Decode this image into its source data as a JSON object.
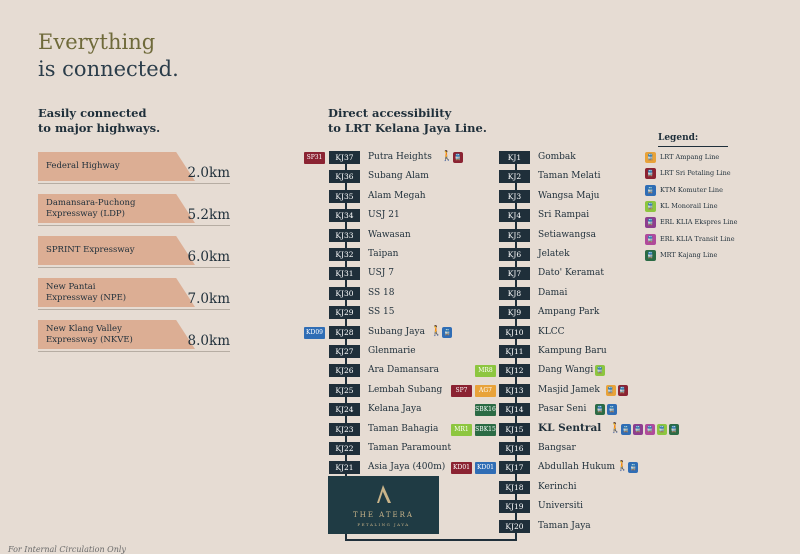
{
  "hero": {
    "line1": "Everything",
    "line2": "is connected."
  },
  "highways": {
    "heading": [
      "Easily connected",
      "to major highways."
    ],
    "items": [
      {
        "name": [
          "Federal Highway"
        ],
        "distance": "2.0km"
      },
      {
        "name": [
          "Damansara-Puchong",
          "Expressway (LDP)"
        ],
        "distance": "5.2km"
      },
      {
        "name": [
          "SPRINT Expressway"
        ],
        "distance": "6.0km"
      },
      {
        "name": [
          "New Pantai",
          "Expressway (NPE)"
        ],
        "distance": "7.0km"
      },
      {
        "name": [
          "New Klang Valley",
          "Expressway (NKVE)"
        ],
        "distance": "8.0km"
      }
    ]
  },
  "lrt": {
    "heading": [
      "Direct accessibility",
      "to LRT Kelana Jaya Line."
    ],
    "left": [
      {
        "code": "KJ37",
        "name": "Putra Heights",
        "badges": [
          {
            "text": "SP31",
            "line": "sri_petaling"
          }
        ],
        "icons": [
          "walk",
          "sri_petaling"
        ]
      },
      {
        "code": "KJ36",
        "name": "Subang Alam",
        "badges": [],
        "icons": []
      },
      {
        "code": "KJ35",
        "name": "Alam Megah",
        "badges": [],
        "icons": []
      },
      {
        "code": "KJ34",
        "name": "USJ 21",
        "badges": [],
        "icons": []
      },
      {
        "code": "KJ33",
        "name": "Wawasan",
        "badges": [],
        "icons": []
      },
      {
        "code": "KJ32",
        "name": "Taipan",
        "badges": [],
        "icons": []
      },
      {
        "code": "KJ31",
        "name": "USJ 7",
        "badges": [],
        "icons": []
      },
      {
        "code": "KJ30",
        "name": "SS 18",
        "badges": [],
        "icons": []
      },
      {
        "code": "KJ29",
        "name": "SS 15",
        "badges": [],
        "icons": []
      },
      {
        "code": "KJ28",
        "name": "Subang Jaya",
        "badges": [
          {
            "text": "KD09",
            "line": "ktm"
          }
        ],
        "icons": [
          "walk",
          "ktm"
        ]
      },
      {
        "code": "KJ27",
        "name": "Glenmarie",
        "badges": [],
        "icons": []
      },
      {
        "code": "KJ26",
        "name": "Ara Damansara",
        "badges": [],
        "icons": []
      },
      {
        "code": "KJ25",
        "name": "Lembah Subang",
        "badges": [],
        "icons": []
      },
      {
        "code": "KJ24",
        "name": "Kelana Jaya",
        "badges": [],
        "icons": []
      },
      {
        "code": "KJ23",
        "name": "Taman Bahagia",
        "badges": [],
        "icons": []
      },
      {
        "code": "KJ22",
        "name": "Taman Paramount",
        "badges": [],
        "icons": []
      },
      {
        "code": "KJ21",
        "name": "Asia Jaya (400m)",
        "badges": [],
        "icons": []
      }
    ],
    "right": [
      {
        "code": "KJ1",
        "name": "Gombak",
        "badges": [],
        "icons": []
      },
      {
        "code": "KJ2",
        "name": "Taman Melati",
        "badges": [],
        "icons": []
      },
      {
        "code": "KJ3",
        "name": "Wangsa Maju",
        "badges": [],
        "icons": []
      },
      {
        "code": "KJ4",
        "name": "Sri Rampai",
        "badges": [],
        "icons": []
      },
      {
        "code": "KJ5",
        "name": "Setiawangsa",
        "badges": [],
        "icons": []
      },
      {
        "code": "KJ6",
        "name": "Jelatek",
        "badges": [],
        "icons": []
      },
      {
        "code": "KJ7",
        "name": "Dato' Keramat",
        "badges": [],
        "icons": []
      },
      {
        "code": "KJ8",
        "name": "Damai",
        "badges": [],
        "icons": []
      },
      {
        "code": "KJ9",
        "name": "Ampang Park",
        "badges": [],
        "icons": []
      },
      {
        "code": "KJ10",
        "name": "KLCC",
        "badges": [],
        "icons": []
      },
      {
        "code": "KJ11",
        "name": "Kampung Baru",
        "badges": [],
        "icons": []
      },
      {
        "code": "KJ12",
        "name": "Dang Wangi",
        "badges": [
          {
            "text": "MR8",
            "line": "monorail"
          }
        ],
        "icons": [
          "monorail"
        ]
      },
      {
        "code": "KJ13",
        "name": "Masjid Jamek",
        "badges": [
          {
            "text": "SP7",
            "line": "sri_petaling"
          },
          {
            "text": "AG7",
            "line": "ampang"
          }
        ],
        "icons": [
          "ampang",
          "sri_petaling"
        ]
      },
      {
        "code": "KJ14",
        "name": "Pasar Seni",
        "badges": [
          {
            "text": "SBK16",
            "line": "mrt"
          }
        ],
        "icons": [
          "mrt",
          "ktm"
        ]
      },
      {
        "code": "KJ15",
        "name": "KL Sentral",
        "bold": true,
        "badges": [
          {
            "text": "MR1",
            "line": "monorail"
          },
          {
            "text": "SBK15",
            "line": "mrt"
          }
        ],
        "icons": [
          "walk",
          "ktm",
          "erl_ekspres",
          "erl_transit",
          "monorail",
          "mrt"
        ]
      },
      {
        "code": "KJ16",
        "name": "Bangsar",
        "badges": [],
        "icons": []
      },
      {
        "code": "KJ17",
        "name": "Abdullah Hukum",
        "badges": [
          {
            "text": "KD01",
            "line": "sri_petaling"
          },
          {
            "text": "KD01",
            "line": "ktm"
          }
        ],
        "icons": [
          "walk",
          "ktm"
        ]
      },
      {
        "code": "KJ18",
        "name": "Kerinchi",
        "badges": [],
        "icons": []
      },
      {
        "code": "KJ19",
        "name": "Universiti",
        "badges": [],
        "icons": []
      },
      {
        "code": "KJ20",
        "name": "Taman Jaya",
        "badges": [],
        "icons": []
      }
    ]
  },
  "legend": {
    "title": "Legend:",
    "items": [
      {
        "key": "ampang",
        "label": "LRT Ampang Line",
        "color": "#e8a33a"
      },
      {
        "key": "sri_petaling",
        "label": "LRT Sri Petaling Line",
        "color": "#8b2332"
      },
      {
        "key": "ktm",
        "label": "KTM Komuter Line",
        "color": "#2f6db5"
      },
      {
        "key": "monorail",
        "label": "KL Monorail Line",
        "color": "#8dc63f"
      },
      {
        "key": "erl_ekspres",
        "label": "ERL KLIA Ekspres Line",
        "color": "#8d3e8f"
      },
      {
        "key": "erl_transit",
        "label": "ERL KLIA Transit Line",
        "color": "#b04a9c"
      },
      {
        "key": "mrt",
        "label": "MRT Kajang Line",
        "color": "#2b6b45"
      }
    ]
  },
  "development": {
    "name": "THE ATERA",
    "location": "PETALING JAYA"
  },
  "footnote": "For Internal Circulation Only"
}
